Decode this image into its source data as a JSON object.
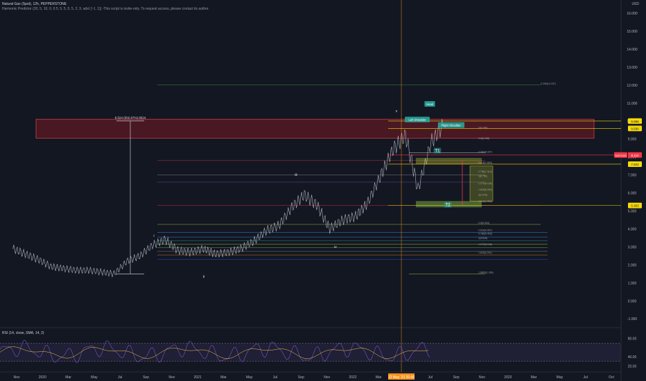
{
  "header": {
    "symbol": "Natural Gas (Spot), 12h, PEPPERSTONE",
    "indicator": "Harmonic Predictor (20, 5, 10, 0, 0.5, 5, 5, 5, 5, 2, 3, adxt [~1, 1]) -This script is invite-only. To request access, please contact its author."
  },
  "currency": "USD",
  "rsi_header": "RSI (14, close, SMA, 14, 2)",
  "colors": {
    "background": "#131722",
    "price_line": "#b2b5be",
    "zone_fill": "#8b1a24",
    "zone_border": "#ff4d5a",
    "yellow": "#f5d90a",
    "green": "#26a69a",
    "blue": "#2962ff",
    "crosshair": "#f7931a",
    "rsi_fill": "#7e57c2"
  },
  "chart_data": {
    "type": "line",
    "title": "Natural Gas (Spot), 12h, PEPPERSTONE",
    "y_axis": {
      "ticks": [
        "16.000",
        "15.000",
        "14.000",
        "13.000",
        "12.000",
        "11.000",
        "10.000",
        "9.000",
        "8.000",
        "7.000",
        "6.000",
        "5.000",
        "4.000",
        "3.000",
        "2.000",
        "1.000",
        "0.000",
        "-1.000"
      ],
      "range": [
        -1.3,
        16.5
      ]
    },
    "x_axis": {
      "ticks": [
        "Nov",
        "2020",
        "Mar",
        "May",
        "Jul",
        "Sep",
        "Nov",
        "2021",
        "Mar",
        "May",
        "Jul",
        "Sep",
        "Nov",
        "2022",
        "Mar",
        "May",
        "Jul",
        "Sep",
        "Nov",
        "2023",
        "Mar",
        "May",
        "Jul",
        "Oct"
      ]
    },
    "price_badges": [
      {
        "label": "9.996",
        "value": 9.996,
        "color": "#f5d90a"
      },
      {
        "label": "9.590",
        "value": 9.59,
        "color": "#f5d90a"
      },
      {
        "label": "8.110",
        "value": 8.11,
        "color": "#f23645",
        "tag": "NATGAS"
      },
      {
        "label": "7.602",
        "value": 7.602,
        "color": "#f5d90a"
      },
      {
        "label": "5.303",
        "value": 5.303,
        "color": "#f5d90a"
      }
    ],
    "pattern_labels": [
      {
        "text": "Head",
        "style": "green"
      },
      {
        "text": "Left Shoulder",
        "style": "green"
      },
      {
        "text": "Right Shoulder",
        "style": "green"
      },
      {
        "text": "T1",
        "style": "green"
      },
      {
        "text": "T2",
        "style": "green"
      }
    ],
    "wave_labels": [
      "i",
      "ii",
      "iii",
      "iv",
      "v"
    ],
    "measurement": "8.524 (502.67%) 8524",
    "crosshair_date": "22 May '22 20:00",
    "fib_labels": [
      "0.236(13.187)",
      "1(0.200)",
      "0.5(8.258)",
      "0.382(8.337)",
      "0.618(7.800)",
      "0.786(7.314)",
      "1(6.750)",
      "1.272(6.145)",
      "1.618(5.294)",
      "2(4.375)",
      "2.618(2.883)",
      "0.5(5.303)",
      "0.618(4.957)",
      "0.786(4.453)",
      "1(3.818)",
      "1.272(3.106)",
      "1.618(2.201)",
      "1.8865(1.396)"
    ],
    "series": [
      {
        "name": "",
        "x": [
          "2019-11-01",
          "2019-12-01",
          "2020-01-01",
          "2020-02-01",
          "2020-03-01",
          "2020-04-01",
          "2020-05-01",
          "2020-06-01",
          "2020-07-01",
          "2020-08-01",
          "2020-09-01",
          "2020-10-01",
          "2020-11-01",
          "2020-12-01",
          "2021-01-01",
          "2021-02-01",
          "2021-03-01",
          "2021-04-01",
          "2021-05-01",
          "2021-06-01",
          "2021-07-01",
          "2021-08-01",
          "2021-09-01",
          "2021-10-01",
          "2021-11-01",
          "2021-12-01",
          "2022-01-01",
          "2022-02-01",
          "2022-03-01",
          "2022-04-01",
          "2022-05-01",
          "2022-06-01",
          "2022-07-01",
          "2022-08-01",
          "2022-09-01"
        ],
        "y": [
          2.9,
          2.6,
          2.3,
          1.9,
          1.8,
          1.7,
          1.7,
          1.6,
          1.5,
          2.2,
          2.5,
          3.1,
          3.4,
          2.8,
          2.7,
          2.9,
          2.6,
          2.7,
          2.9,
          3.3,
          3.9,
          4.2,
          5.2,
          5.9,
          5.3,
          4.0,
          4.5,
          4.7,
          5.4,
          6.9,
          8.4,
          9.2,
          6.2,
          8.8,
          9.8
        ]
      }
    ],
    "rsi": {
      "levels": [
        70,
        30
      ],
      "ticks": [
        "80.00",
        "40.00",
        "20.00"
      ]
    }
  }
}
